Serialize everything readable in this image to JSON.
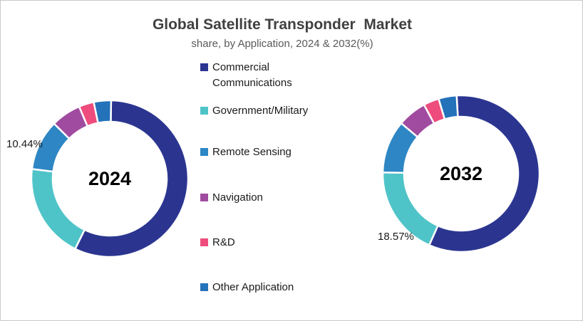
{
  "chart_data": {
    "type": "pie",
    "subtype": "donut",
    "title": "Global Satellite Transponder  Market",
    "subtitle": "share, by Application, 2024 & 2032(%)",
    "legend_position": "center-column",
    "categories": [
      "Commercial Communications",
      "Government/Military",
      "Remote Sensing",
      "Navigation",
      "R&D",
      "Other Application"
    ],
    "colors": [
      "#2b3590",
      "#4fc4c8",
      "#2e86c4",
      "#a04ba0",
      "#ee4c7d",
      "#2472ba"
    ],
    "series": [
      {
        "name": "2024",
        "values": [
          57.0,
          19.7,
          10.44,
          6.2,
          3.1,
          3.56
        ],
        "labeled": {
          "category": "Remote Sensing",
          "text": "10.44%"
        }
      },
      {
        "name": "2032",
        "values": [
          57.6,
          18.57,
          10.9,
          6.0,
          3.2,
          3.73
        ],
        "labeled": {
          "category": "Government/Military",
          "text": "18.57%"
        }
      }
    ],
    "gap_color": "#ffffff",
    "title_color": "#404040",
    "subtitle_color": "#595959"
  }
}
